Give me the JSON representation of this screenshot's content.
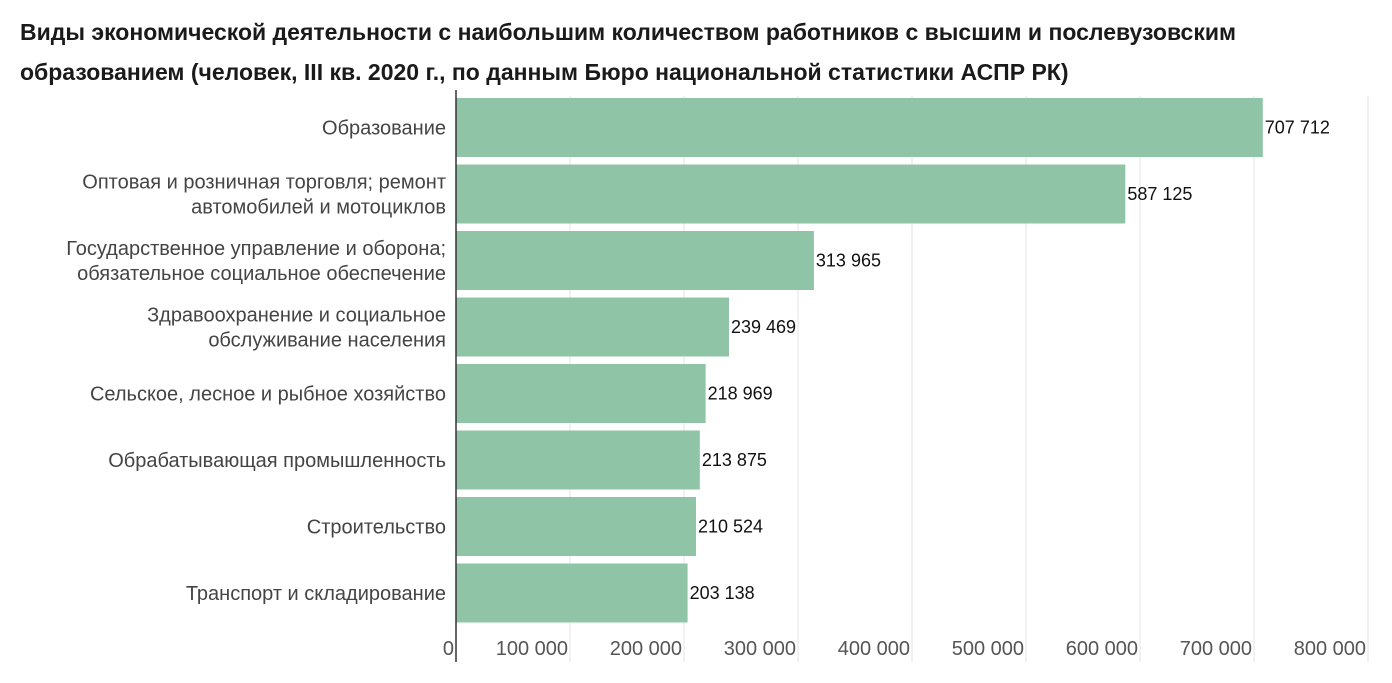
{
  "chart_data": {
    "type": "bar",
    "orientation": "horizontal",
    "title": "Виды экономической деятельности с наибольшим количеством работников с высшим и послевузовским образованием (человек, III кв. 2020 г., по данным Бюро национальной статистики АСПР РК)",
    "categories": [
      [
        "Образование"
      ],
      [
        "Оптовая и розничная торговля; ремонт",
        "автомобилей и мотоциклов"
      ],
      [
        "Государственное управление и оборона;",
        "обязательное социальное обеспечение"
      ],
      [
        "Здравоохранение и социальное",
        "обслуживание населения"
      ],
      [
        "Сельское, лесное и рыбное хозяйство"
      ],
      [
        "Обрабатывающая промышленность"
      ],
      [
        "Строительство"
      ],
      [
        "Транспорт и складирование"
      ]
    ],
    "values": [
      707712,
      587125,
      313965,
      239469,
      218969,
      213875,
      210524,
      203138
    ],
    "value_labels": [
      "707 712",
      "587 125",
      "313 965",
      "239 469",
      "218 969",
      "213 875",
      "210 524",
      "203 138"
    ],
    "xlim": [
      0,
      800000
    ],
    "x_ticks": [
      0,
      100000,
      200000,
      300000,
      400000,
      500000,
      600000,
      700000,
      800000
    ],
    "x_tick_labels": [
      "0",
      "100 000",
      "200 000",
      "300 000",
      "400 000",
      "500 000",
      "600 000",
      "700 000",
      "800 000"
    ],
    "xlabel": "",
    "ylabel": "",
    "grid": "vertical",
    "legend": "none",
    "bar_color": "#90c4a6",
    "grid_color": "#e3e3e3",
    "axis_color": "#333333"
  }
}
